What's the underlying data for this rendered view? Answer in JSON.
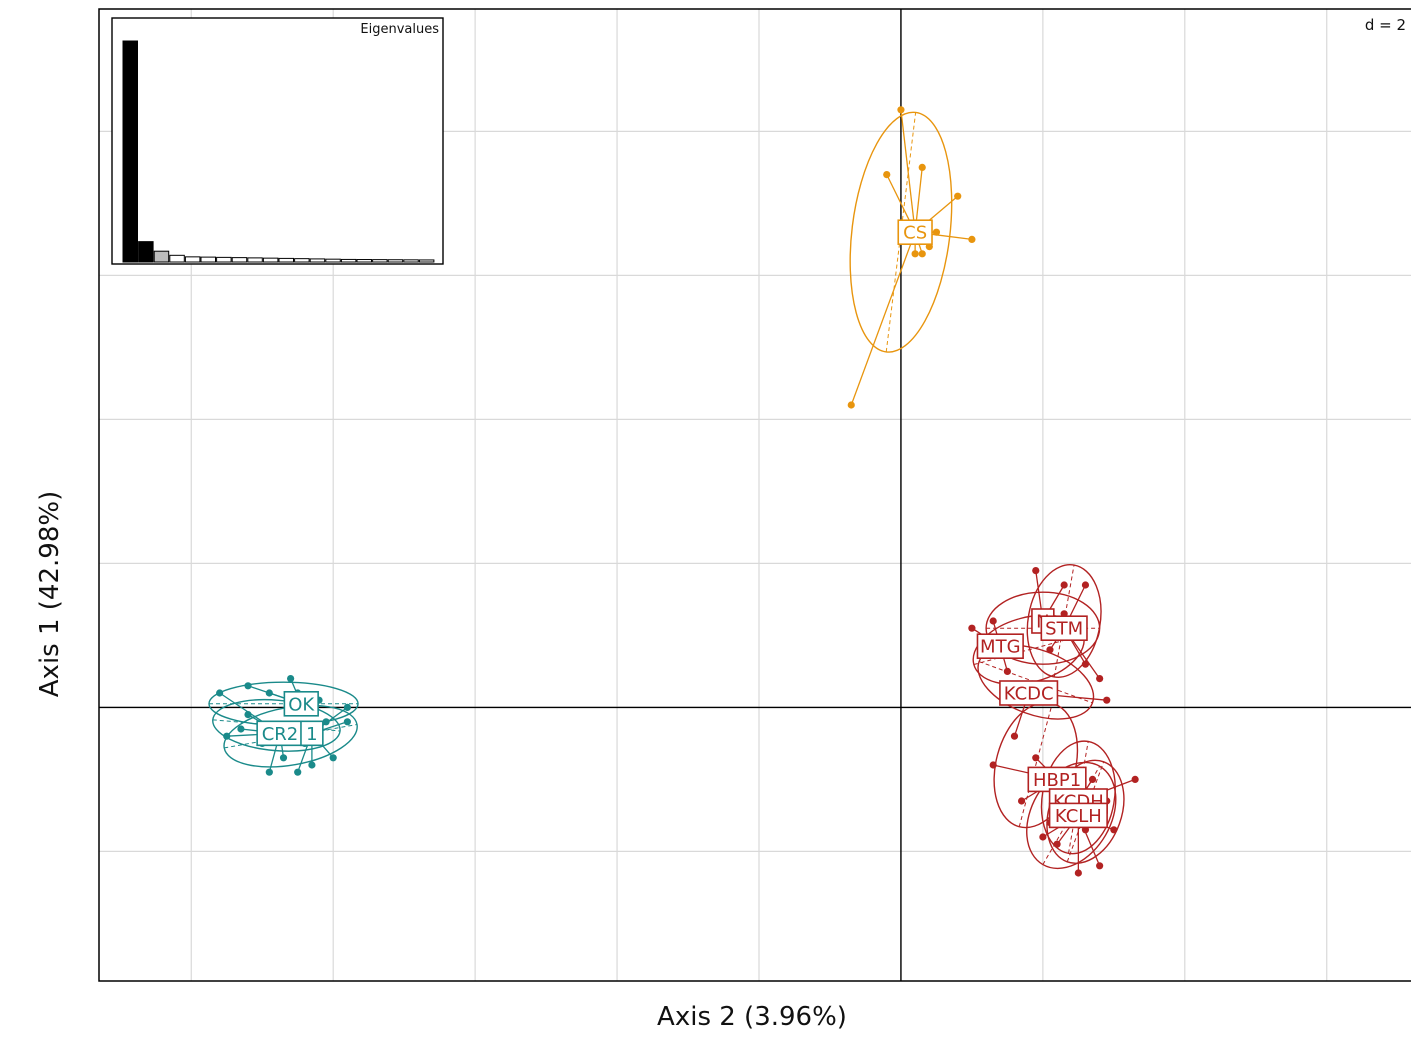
{
  "chart_data": {
    "type": "scatter",
    "title": "",
    "xlabel": "Axis 2 (3.96%)",
    "ylabel": "Axis 1 (42.98%)",
    "scale_label": "d = 2",
    "grid": true,
    "xlim": [
      -11.3,
      7.3
    ],
    "ylim": [
      -3.8,
      9.7
    ],
    "inset": {
      "title": "Eigenvalues",
      "values": [
        42.98,
        3.96,
        2.1,
        1.3,
        1.0,
        0.95,
        0.9,
        0.85,
        0.8,
        0.75,
        0.7,
        0.65,
        0.6,
        0.55,
        0.5,
        0.48,
        0.46,
        0.44,
        0.42,
        0.4
      ]
    },
    "groups": [
      {
        "name": "CS",
        "color": "#E8950E",
        "centroid": [
          2.2,
          6.7
        ],
        "points": [
          [
            0.0,
            8.3
          ],
          [
            0.3,
            7.5
          ],
          [
            -0.2,
            7.4
          ],
          [
            0.8,
            7.1
          ],
          [
            1.0,
            6.5
          ],
          [
            0.3,
            6.3
          ],
          [
            0.4,
            6.4
          ],
          [
            0.2,
            6.3
          ],
          [
            -0.7,
            4.2
          ],
          [
            0.5,
            6.6
          ]
        ],
        "ellipses": [
          {
            "cx": 0.0,
            "cy": 6.6,
            "rx": 1.7,
            "ry": 0.68,
            "angle": 83
          }
        ],
        "labels": [
          {
            "text": "CS",
            "x": 0.2,
            "y": 6.6
          }
        ]
      },
      {
        "name": "OK / CR2 / CR1",
        "color": "#1A8A8A",
        "points": [
          [
            -9.6,
            0.2
          ],
          [
            -9.2,
            0.3
          ],
          [
            -8.9,
            0.2
          ],
          [
            -8.5,
            0.2
          ],
          [
            -8.2,
            0.1
          ],
          [
            -7.8,
            0.0
          ],
          [
            -9.5,
            -0.4
          ],
          [
            -9.0,
            -0.5
          ],
          [
            -8.7,
            -0.7
          ],
          [
            -8.3,
            -0.8
          ],
          [
            -8.0,
            -0.7
          ],
          [
            -8.4,
            -0.5
          ],
          [
            -9.2,
            -0.1
          ],
          [
            -8.8,
            -0.3
          ],
          [
            -8.1,
            -0.2
          ],
          [
            -8.6,
            0.4
          ],
          [
            -9.3,
            -0.3
          ],
          [
            -8.9,
            -0.9
          ],
          [
            -8.5,
            -0.9
          ],
          [
            -7.8,
            -0.2
          ]
        ],
        "ellipses": [
          {
            "cx": -8.7,
            "cy": 0.05,
            "rx": 1.05,
            "ry": 0.3,
            "angle": 0
          },
          {
            "cx": -8.6,
            "cy": -0.4,
            "rx": 0.95,
            "ry": 0.4,
            "angle": 10
          },
          {
            "cx": -8.8,
            "cy": -0.25,
            "rx": 0.9,
            "ry": 0.35,
            "angle": -5
          }
        ],
        "labels": [
          {
            "text": "OK",
            "x": -8.45,
            "y": 0.05
          },
          {
            "text": "CR2",
            "x": -8.75,
            "y": -0.36
          },
          {
            "text": "1",
            "x": -8.3,
            "y": -0.36
          }
        ]
      },
      {
        "name": "MTG / STM / KCDC / HBP1 / KCDH / KCLH",
        "color": "#B22222",
        "points": [
          [
            1.9,
            1.9
          ],
          [
            2.3,
            1.7
          ],
          [
            2.6,
            1.7
          ],
          [
            2.3,
            1.3
          ],
          [
            2.5,
            1.2
          ],
          [
            1.3,
            1.2
          ],
          [
            1.0,
            1.1
          ],
          [
            1.6,
            0.9
          ],
          [
            2.1,
            0.8
          ],
          [
            2.6,
            0.6
          ],
          [
            2.8,
            0.4
          ],
          [
            1.5,
            0.5
          ],
          [
            1.7,
            0.2
          ],
          [
            2.9,
            0.1
          ],
          [
            1.6,
            -0.4
          ],
          [
            1.9,
            -0.7
          ],
          [
            1.3,
            -0.8
          ],
          [
            2.1,
            -1.1
          ],
          [
            2.7,
            -1.0
          ],
          [
            2.9,
            -1.3
          ],
          [
            3.3,
            -1.0
          ],
          [
            1.7,
            -1.3
          ],
          [
            2.4,
            -1.5
          ],
          [
            2.1,
            -1.6
          ],
          [
            2.6,
            -1.7
          ],
          [
            3.0,
            -1.7
          ],
          [
            2.2,
            -1.9
          ],
          [
            2.8,
            -2.2
          ],
          [
            2.5,
            -2.3
          ],
          [
            2.0,
            -1.8
          ]
        ],
        "ellipses": [
          {
            "cx": 2.0,
            "cy": 1.1,
            "rx": 0.8,
            "ry": 0.5,
            "angle": 0
          },
          {
            "cx": 2.3,
            "cy": 1.2,
            "rx": 0.8,
            "ry": 0.5,
            "angle": 80
          },
          {
            "cx": 1.8,
            "cy": 0.8,
            "rx": 0.8,
            "ry": 0.45,
            "angle": 15
          },
          {
            "cx": 1.9,
            "cy": 0.35,
            "rx": 0.85,
            "ry": 0.45,
            "angle": -20
          },
          {
            "cx": 1.9,
            "cy": -0.8,
            "rx": 0.9,
            "ry": 0.55,
            "angle": 75
          },
          {
            "cx": 2.5,
            "cy": -1.25,
            "rx": 0.8,
            "ry": 0.5,
            "angle": 80
          },
          {
            "cx": 2.6,
            "cy": -1.45,
            "rx": 0.75,
            "ry": 0.5,
            "angle": 70
          },
          {
            "cx": 2.4,
            "cy": -1.5,
            "rx": 0.8,
            "ry": 0.55,
            "angle": 60
          }
        ],
        "labels": [
          {
            "text": "N",
            "x": 2.0,
            "y": 1.2
          },
          {
            "text": "STM",
            "x": 2.3,
            "y": 1.1
          },
          {
            "text": "MTG",
            "x": 1.4,
            "y": 0.85
          },
          {
            "text": "KCDC",
            "x": 1.8,
            "y": 0.2
          },
          {
            "text": "HBP1",
            "x": 2.2,
            "y": -1.0
          },
          {
            "text": "KCDH",
            "x": 2.5,
            "y": -1.3
          },
          {
            "text": "KCLH",
            "x": 2.5,
            "y": -1.5
          }
        ]
      }
    ]
  }
}
